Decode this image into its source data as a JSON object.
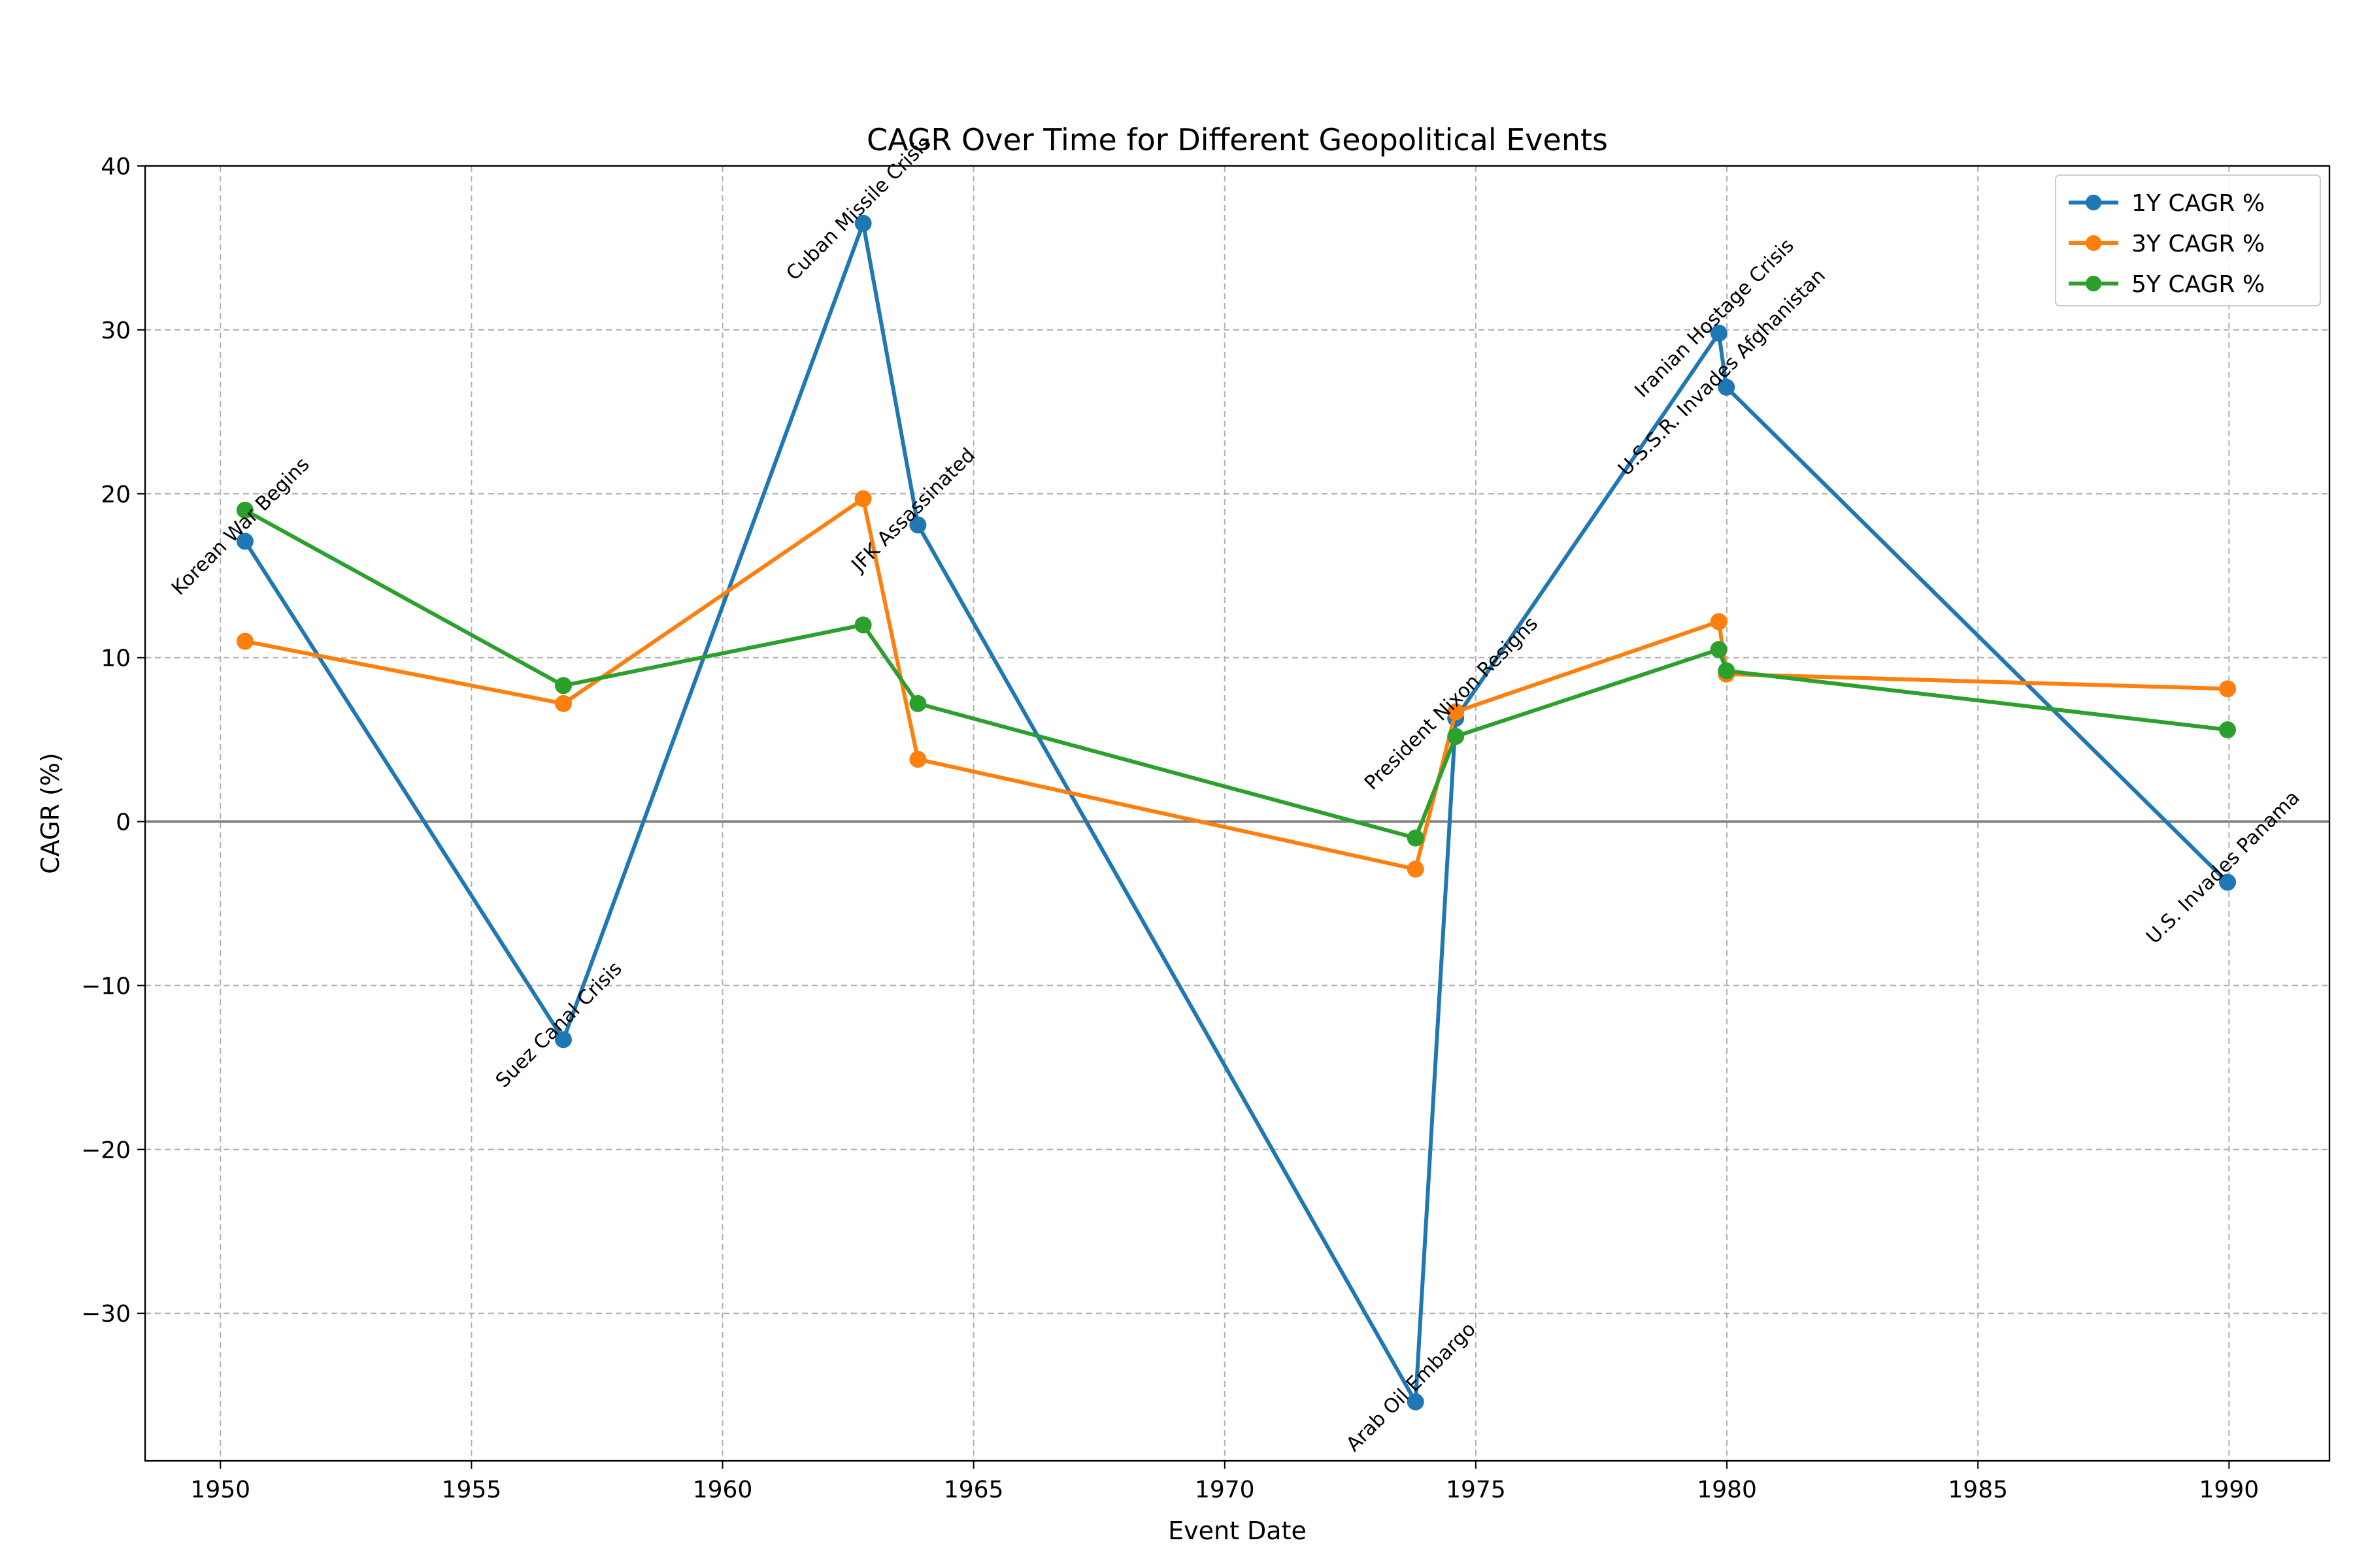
{
  "chart_data": {
    "type": "line",
    "title": "CAGR Over Time for Different Geopolitical Events",
    "xlabel": "Event Date",
    "ylabel": "CAGR (%)",
    "xlim": [
      1948.5,
      1992.0
    ],
    "ylim": [
      -39,
      40
    ],
    "x_ticks": [
      1950,
      1955,
      1960,
      1965,
      1970,
      1975,
      1980,
      1985,
      1990
    ],
    "y_ticks": [
      -30,
      -20,
      -10,
      0,
      10,
      20,
      30,
      40
    ],
    "grid": true,
    "zero_line": true,
    "legend_position": "top-right",
    "events": [
      {
        "label": "Korean War Begins",
        "date": 1950.49
      },
      {
        "label": "Suez Canal Crisis",
        "date": 1956.83
      },
      {
        "label": "Cuban Missile Crisis",
        "date": 1962.8
      },
      {
        "label": "JFK Assassinated",
        "date": 1963.89
      },
      {
        "label": "Arab Oil Embargo",
        "date": 1973.8
      },
      {
        "label": "President Nixon Resigns",
        "date": 1974.6
      },
      {
        "label": "Iranian Hostage Crisis",
        "date": 1979.84
      },
      {
        "label": "U.S.S.R. Invades Afghanistan",
        "date": 1979.99
      },
      {
        "label": "U.S. Invades Panama",
        "date": 1989.97
      }
    ],
    "series": [
      {
        "name": "1Y CAGR %",
        "color": "#1f77b4",
        "values": [
          17.1,
          -13.3,
          36.5,
          18.1,
          -35.4,
          6.3,
          29.8,
          26.5,
          -3.7
        ]
      },
      {
        "name": "3Y CAGR %",
        "color": "#ff7f0e",
        "values": [
          11.0,
          7.2,
          19.7,
          3.8,
          -2.9,
          6.7,
          12.2,
          9.0,
          8.1
        ]
      },
      {
        "name": "5Y CAGR %",
        "color": "#2ca02c",
        "values": [
          19.0,
          8.3,
          12.0,
          7.2,
          -1.0,
          5.2,
          10.5,
          9.2,
          5.6
        ]
      }
    ]
  }
}
